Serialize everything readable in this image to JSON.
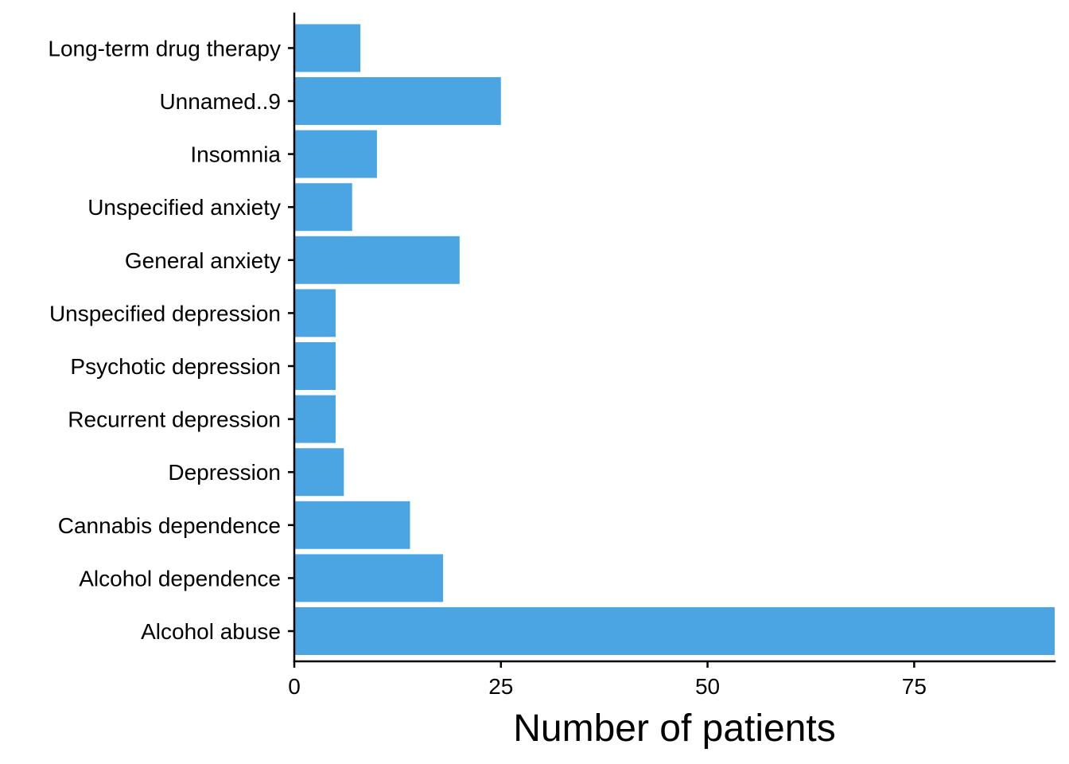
{
  "chart_data": {
    "type": "bar",
    "orientation": "horizontal",
    "categories": [
      "Alcohol abuse",
      "Alcohol dependence",
      "Cannabis dependence",
      "Depression",
      "Recurrent depression",
      "Psychotic depression",
      "Unspecified depression",
      "General anxiety",
      "Unspecified anxiety",
      "Insomnia",
      "Unnamed..9",
      "Long-term drug therapy"
    ],
    "values": [
      92,
      18,
      14,
      6,
      5,
      5,
      5,
      20,
      7,
      10,
      25,
      8
    ],
    "xlabel": "Number of patients",
    "ylabel": "",
    "xlim": [
      0,
      92
    ],
    "xticks": [
      0,
      25,
      50,
      75
    ],
    "xtick_labels": [
      "0",
      "25",
      "50",
      "75"
    ],
    "grid": false,
    "legend": "none",
    "colors": {
      "bar": "#4AA5E2",
      "axis": "#000000",
      "background": "#FFFFFF"
    }
  }
}
